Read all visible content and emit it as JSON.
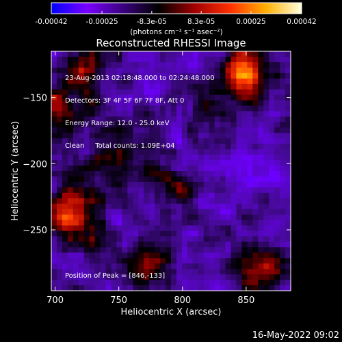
{
  "chart_data": {
    "type": "heatmap",
    "title": "Reconstructed RHESSI Image",
    "xlabel": "Heliocentric X (arcsec)",
    "ylabel": "Heliocentric Y (arcsec)",
    "xlim": [
      697,
      885
    ],
    "ylim": [
      -296,
      -115
    ],
    "x_ticks": [
      700,
      750,
      800,
      850
    ],
    "y_ticks": [
      -150,
      -200,
      -250
    ],
    "colorbar": {
      "ticks": [
        -0.00042,
        -0.00025,
        -8.3e-05,
        8.3e-05,
        0.00025,
        0.00042
      ],
      "tick_labels": [
        "-0.00042",
        "-0.00025",
        "-8.3e-05",
        "8.3e-05",
        "0.00025",
        "0.00042"
      ],
      "range": [
        -0.00042,
        0.00042
      ],
      "unit_label": "(photons cm⁻² s⁻¹ asec⁻²)",
      "colors": [
        "#0000ff",
        "#7a00ff",
        "#3a0080",
        "#000000",
        "#a00000",
        "#ff3000",
        "#ffb000",
        "#ffffe0"
      ]
    },
    "hotspots": [
      {
        "x": 848,
        "y": -133,
        "amp": 0.00042
      },
      {
        "x": 712,
        "y": -240,
        "amp": 0.00038
      },
      {
        "x": 704,
        "y": -160,
        "amp": 0.0003
      },
      {
        "x": 862,
        "y": -282,
        "amp": 0.00032
      },
      {
        "x": 775,
        "y": -275,
        "amp": 0.00025
      },
      {
        "x": 760,
        "y": -190,
        "amp": 0.00022
      },
      {
        "x": 726,
        "y": -124,
        "amp": 0.00024
      },
      {
        "x": 790,
        "y": -217,
        "amp": 0.00016
      },
      {
        "x": 725,
        "y": -205,
        "amp": 0.00018
      },
      {
        "x": 820,
        "y": -160,
        "amp": 0.00012
      }
    ]
  },
  "info": {
    "time_range": "23-Aug-2013 02:18:48.000 to 02:24:48.000",
    "detectors": "Detectors: 3F 4F 5F 6F 7F 8F, Att 0",
    "energy": "Energy Range: 12.0 - 25.0 keV",
    "clean": "Clean     Total counts: 1.09E+04",
    "peak": "Position of Peak = [846,-133]"
  },
  "footer": {
    "timestamp": "16-May-2022 09:02"
  }
}
